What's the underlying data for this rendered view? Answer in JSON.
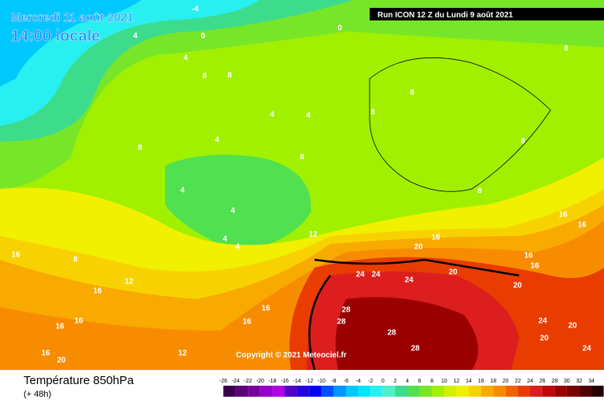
{
  "header": {
    "date": "Mercredi 11 août 2021",
    "time": "14:00 locale",
    "run": "Run ICON 12 Z du Lundi 9 août 2021"
  },
  "copyright": "Copyright © 2021 Meteociel.fr",
  "legend": {
    "title": "Température 850hPa",
    "subtitle": "(+ 48h)",
    "scale": [
      -26,
      -24,
      -22,
      -20,
      -18,
      -16,
      -14,
      -12,
      -10,
      -8,
      -6,
      -4,
      -2,
      0,
      2,
      4,
      6,
      8,
      10,
      12,
      14,
      16,
      18,
      20,
      22,
      24,
      26,
      28,
      30,
      32,
      34
    ],
    "colors": [
      "#3c0050",
      "#5a0078",
      "#7800a0",
      "#9600c8",
      "#b400e6",
      "#5000c8",
      "#2800e6",
      "#0000ff",
      "#0050ff",
      "#0096ff",
      "#00c8ff",
      "#00e6ff",
      "#28f0f0",
      "#50f0c8",
      "#3cdc8c",
      "#50e050",
      "#78e628",
      "#a0f000",
      "#d2f000",
      "#f0f000",
      "#f8d200",
      "#f8aa00",
      "#f88c00",
      "#f06400",
      "#e83c00",
      "#dc1e1e",
      "#be0a0a",
      "#9b0000",
      "#780000",
      "#500000",
      "#280000"
    ]
  },
  "map_labels": [
    -4,
    0,
    0,
    4,
    4,
    8,
    8,
    4,
    4,
    4,
    8,
    8,
    4,
    4,
    4,
    4,
    12,
    16,
    20,
    24,
    24,
    24,
    20,
    28,
    28,
    28,
    28,
    20,
    24,
    20,
    20,
    24,
    16,
    16,
    16,
    16,
    16,
    12,
    16,
    16,
    16,
    16,
    20,
    12,
    16,
    8,
    8,
    8,
    8,
    8,
    8,
    16
  ]
}
